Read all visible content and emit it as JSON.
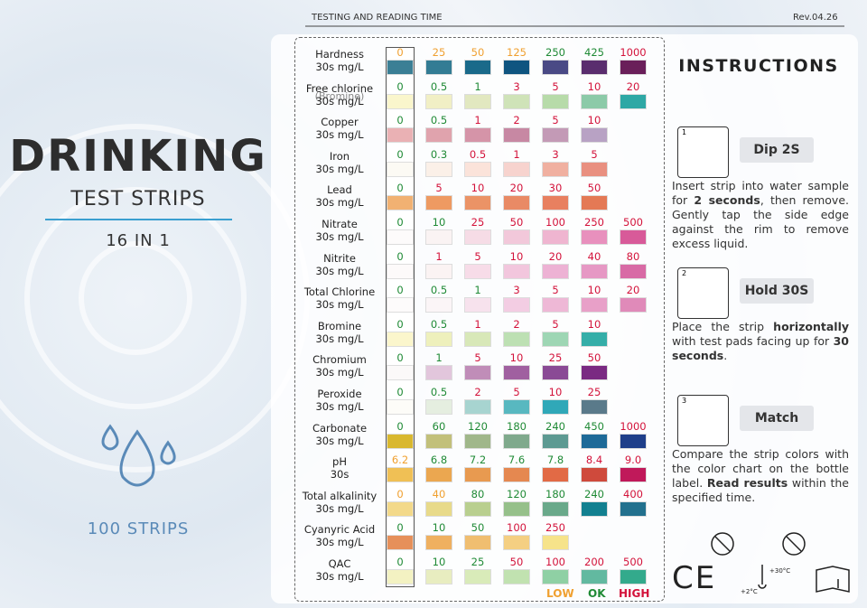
{
  "header": {
    "title": "TESTING AND READING TIME",
    "rev": "Rev.04.26"
  },
  "left": {
    "title": "DRINKING",
    "subtitle": "TEST STRIPS",
    "count_line": "16 IN 1",
    "strips": "100 STRIPS"
  },
  "legend": [
    {
      "text": "LOW",
      "color": "#f0a030"
    },
    {
      "text": "OK",
      "color": "#1f8a35"
    },
    {
      "text": "HIGH",
      "color": "#d3123a"
    }
  ],
  "rows": [
    {
      "name": "Hardness",
      "unit": "30s mg/L",
      "levels": [
        "0",
        "25",
        "50",
        "125",
        "250",
        "425",
        "1000"
      ],
      "tones": [
        0,
        0,
        0,
        0,
        1,
        1,
        2
      ],
      "colors": [
        "#3b7f95",
        "#337c94",
        "#1a6a8a",
        "#0f5580",
        "#4a4a85",
        "#5a2d6e",
        "#6a1f5a"
      ]
    },
    {
      "name": "Free chlorine",
      "note": "(Bromine)",
      "unit": "30s mg/L",
      "levels": [
        "0",
        "0.5",
        "1",
        "3",
        "5",
        "10",
        "20"
      ],
      "tones": [
        1,
        1,
        1,
        2,
        2,
        2,
        2
      ],
      "colors": [
        "#faf6cc",
        "#f1efc5",
        "#e2e8c0",
        "#cfe3b8",
        "#b7dba9",
        "#8ccaa8",
        "#2ea8a5"
      ]
    },
    {
      "name": "Copper",
      "unit": "30s mg/L",
      "levels": [
        "0",
        "0.5",
        "1",
        "2",
        "5",
        "10"
      ],
      "tones": [
        1,
        1,
        2,
        2,
        2,
        2
      ],
      "colors": [
        "#eab1b4",
        "#e0a3ad",
        "#d594a8",
        "#c788a3",
        "#c39ab6",
        "#b8a2c4"
      ]
    },
    {
      "name": "Iron",
      "unit": "30s mg/L",
      "levels": [
        "0",
        "0.3",
        "0.5",
        "1",
        "3",
        "5"
      ],
      "tones": [
        1,
        1,
        2,
        2,
        2,
        2
      ],
      "colors": [
        "#fcfaf4",
        "#fbf0e8",
        "#fbe3da",
        "#f7d3ce",
        "#f0b0a0",
        "#e99080"
      ]
    },
    {
      "name": "Lead",
      "unit": "30s mg/L",
      "levels": [
        "0",
        "5",
        "10",
        "20",
        "30",
        "50"
      ],
      "tones": [
        1,
        2,
        2,
        2,
        2,
        2
      ],
      "colors": [
        "#f1b172",
        "#ee9a62",
        "#eb9366",
        "#e98a65",
        "#e88060",
        "#e47955"
      ]
    },
    {
      "name": "Nitrate",
      "unit": "30s mg/L",
      "levels": [
        "0",
        "10",
        "25",
        "50",
        "100",
        "250",
        "500"
      ],
      "tones": [
        1,
        1,
        2,
        2,
        2,
        2,
        2
      ],
      "colors": [
        "#fdfbfb",
        "#faf3f3",
        "#f6dce6",
        "#f2c8da",
        "#efb5d0",
        "#e890bd",
        "#d85a99"
      ]
    },
    {
      "name": "Nitrite",
      "unit": "30s mg/L",
      "levels": [
        "0",
        "1",
        "5",
        "10",
        "20",
        "40",
        "80"
      ],
      "tones": [
        1,
        2,
        2,
        2,
        2,
        2,
        2
      ],
      "colors": [
        "#fdfafa",
        "#fbf3f3",
        "#f7dce8",
        "#f2c6dd",
        "#edb2d4",
        "#e698c4",
        "#d86aa5"
      ]
    },
    {
      "name": "Total Chlorine",
      "unit": "30s mg/L",
      "levels": [
        "0",
        "0.5",
        "1",
        "3",
        "5",
        "10",
        "20"
      ],
      "tones": [
        1,
        1,
        1,
        2,
        2,
        2,
        2
      ],
      "colors": [
        "#fdfbfb",
        "#fbf5f7",
        "#f7e2ed",
        "#f3cde3",
        "#eeb8d6",
        "#e8a0c8",
        "#e08ab9"
      ]
    },
    {
      "name": "Bromine",
      "unit": "30s mg/L",
      "levels": [
        "0",
        "0.5",
        "1",
        "2",
        "5",
        "10"
      ],
      "tones": [
        1,
        1,
        2,
        2,
        2,
        2
      ],
      "colors": [
        "#fbf6cc",
        "#eef0bc",
        "#d8e8b8",
        "#bde0b3",
        "#9ed6b4",
        "#35aea8"
      ]
    },
    {
      "name": "Chromium",
      "unit": "30s mg/L",
      "levels": [
        "0",
        "1",
        "5",
        "10",
        "25",
        "50"
      ],
      "tones": [
        1,
        1,
        2,
        2,
        2,
        2
      ],
      "colors": [
        "#fbf9f9",
        "#e2c6dc",
        "#c08db8",
        "#a060a0",
        "#8a4a95",
        "#7a2a82"
      ]
    },
    {
      "name": "Peroxide",
      "unit": "30s mg/L",
      "levels": [
        "0",
        "0.5",
        "2",
        "5",
        "10",
        "25"
      ],
      "tones": [
        1,
        1,
        2,
        2,
        2,
        2
      ],
      "colors": [
        "#fdfcf8",
        "#e5eee0",
        "#a7d4d0",
        "#58b8c0",
        "#30a8b8",
        "#5a7a8a"
      ]
    },
    {
      "name": "Carbonate",
      "unit": "30s mg/L",
      "levels": [
        "0",
        "60",
        "120",
        "180",
        "240",
        "450",
        "1000"
      ],
      "tones": [
        1,
        1,
        1,
        1,
        1,
        1,
        2
      ],
      "colors": [
        "#d9b82f",
        "#c2c07a",
        "#a0b78a",
        "#7fa98c",
        "#5d9a92",
        "#1e6a98",
        "#1f3f8a"
      ]
    },
    {
      "name": "pH",
      "unit": "30s",
      "levels": [
        "6.2",
        "6.8",
        "7.2",
        "7.6",
        "7.8",
        "8.4",
        "9.0"
      ],
      "tones": [
        0,
        1,
        1,
        1,
        1,
        2,
        2
      ],
      "colors": [
        "#f0c055",
        "#eba750",
        "#e89a50",
        "#e58850",
        "#e26a45",
        "#cf4a3c",
        "#c0195a"
      ]
    },
    {
      "name": "Total alkalinity",
      "unit": "30s mg/L",
      "levels": [
        "0",
        "40",
        "80",
        "120",
        "180",
        "240",
        "400"
      ],
      "tones": [
        0,
        0,
        1,
        1,
        1,
        1,
        2
      ],
      "colors": [
        "#f3d98a",
        "#e8da8a",
        "#b9cf8f",
        "#96c08a",
        "#6aa98a",
        "#138090",
        "#23718e"
      ]
    },
    {
      "name": "Cyanyric Acid",
      "unit": "30s mg/L",
      "levels": [
        "0",
        "10",
        "50",
        "100",
        "250"
      ],
      "tones": [
        1,
        1,
        1,
        2,
        2
      ],
      "colors": [
        "#e6905a",
        "#efb060",
        "#f0be70",
        "#f4cf82",
        "#f6e38a"
      ]
    },
    {
      "name": "QAC",
      "unit": "30s mg/L",
      "levels": [
        "0",
        "10",
        "25",
        "50",
        "100",
        "200",
        "500"
      ],
      "tones": [
        1,
        1,
        1,
        2,
        2,
        2,
        2
      ],
      "colors": [
        "#f3f2c2",
        "#e8edc0",
        "#d9ebb9",
        "#c1e2b0",
        "#8fd0a4",
        "#62b9a0",
        "#33aa8c"
      ]
    }
  ],
  "instructions": {
    "title": "INSTRUCTIONS",
    "steps": [
      {
        "number": "1",
        "button": "Dip 2S",
        "text": [
          {
            "t": "Insert strip into water sample for "
          },
          {
            "t": "2 seconds",
            "b": true
          },
          {
            "t": ", then remove. Gently tap the side edge against the rim to remove excess liquid."
          }
        ]
      },
      {
        "number": "2",
        "button": "Hold 30S",
        "text": [
          {
            "t": "Place the strip "
          },
          {
            "t": "horizontally",
            "b": true
          },
          {
            "t": " with test pads facing up for "
          },
          {
            "t": "30 seconds",
            "b": true
          },
          {
            "t": "."
          }
        ]
      },
      {
        "number": "3",
        "button": "Match",
        "text": [
          {
            "t": "Compare the strip colors with the color chart on the bottle label. "
          },
          {
            "t": "Read results",
            "b": true
          },
          {
            "t": " within the specified time."
          }
        ]
      }
    ]
  },
  "footer": {
    "ce": "CE",
    "temp_high": "+30°C",
    "temp_low": "+2°C"
  }
}
